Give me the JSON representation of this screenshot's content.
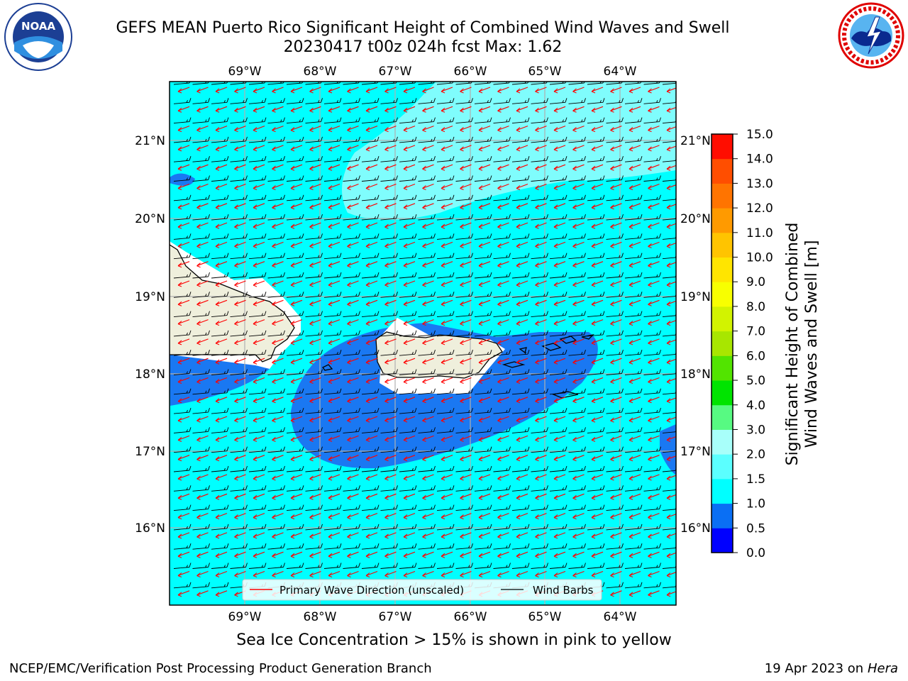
{
  "title_line1": "GEFS MEAN Puerto Rico Significant Height of Combined Wind Waves and Swell",
  "title_line2": "20230417 t00z 024h fcst   Max: 1.62",
  "logos": {
    "left": "noaa-logo",
    "left_text": "NOAA",
    "right": "nws-logo"
  },
  "map": {
    "lon_labels": [
      "69°W",
      "68°W",
      "67°W",
      "66°W",
      "65°W",
      "64°W"
    ],
    "lat_labels": [
      "16°N",
      "17°N",
      "18°N",
      "19°N",
      "20°N",
      "21°N"
    ],
    "colors": {
      "ocean": "#00ffff",
      "shallow": "#1a78f2",
      "light": "#7ffdfd",
      "land": "#efefdc",
      "wave_arrow": "#ff0000",
      "barb": "#000000"
    }
  },
  "legend": {
    "wave_label": "Primary Wave Direction (unscaled)",
    "barb_label": "Wind Barbs"
  },
  "colorbar": {
    "label_line1": "Significant Height of Combined",
    "label_line2": "Wind Waves and Swell [m]",
    "ticks": [
      "15.0",
      "14.0",
      "13.0",
      "12.0",
      "11.0",
      "10.0",
      "9.0",
      "8.0",
      "7.0",
      "6.0",
      "5.0",
      "4.0",
      "3.0",
      "2.0",
      "1.5",
      "1.0",
      "0.5",
      "0.0"
    ],
    "colors": [
      "#0000ff",
      "#0a6ff4",
      "#00ffff",
      "#5bffff",
      "#a8fffa",
      "#57fa82",
      "#00e400",
      "#52e400",
      "#a8e600",
      "#d2f300",
      "#f8ff00",
      "#ffe500",
      "#ffc400",
      "#ff9a00",
      "#ff7400",
      "#ff4e00",
      "#ff0d00"
    ]
  },
  "subcaption": "Sea Ice Concentration > 15% is shown in pink to yellow",
  "footer_left": "NCEP/EMC/Verification Post Processing Product Generation Branch",
  "footer_right_prefix": "19 Apr 2023 on ",
  "footer_right_italic": "Hera"
}
